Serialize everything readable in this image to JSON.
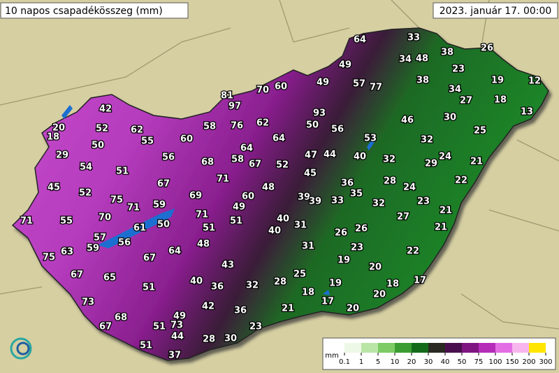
{
  "header": {
    "title": "10 napos csapadékösszeg (mm)",
    "date": "2023. január 17. 00:00"
  },
  "stations": [
    64,
    33,
    38,
    26,
    34,
    48,
    49,
    23,
    38,
    19,
    12,
    57,
    77,
    34,
    27,
    18,
    13,
    81,
    70,
    60,
    49,
    97,
    93,
    46,
    30,
    42,
    20,
    18,
    52,
    62,
    58,
    76,
    62,
    50,
    56,
    53,
    25,
    55,
    60,
    64,
    64,
    32,
    50,
    29,
    56,
    58,
    67,
    47,
    44,
    40,
    32,
    24,
    29,
    21,
    54,
    51,
    68,
    52,
    45,
    71,
    28,
    22,
    45,
    52,
    67,
    69,
    48,
    36,
    24,
    35,
    39,
    39,
    33,
    32,
    23,
    75,
    71,
    59,
    60,
    49,
    71,
    27,
    21,
    71,
    55,
    70,
    51,
    40,
    31,
    50,
    61,
    51,
    40,
    26,
    26,
    21,
    57,
    59,
    56,
    48,
    31,
    23,
    63,
    64,
    22,
    75,
    67,
    19,
    43,
    20,
    67,
    65,
    25,
    17,
    40,
    51,
    36,
    32,
    28,
    18,
    19,
    18,
    20,
    73,
    42,
    17,
    36,
    21,
    20,
    68,
    49,
    51,
    73,
    67,
    23,
    44,
    28,
    30,
    51,
    37
  ],
  "legend": {
    "unit": "mm",
    "ticks": [
      0.1,
      1,
      5,
      10,
      20,
      30,
      40,
      50,
      75,
      100,
      150,
      200,
      300
    ],
    "colors": [
      "#eef8e6",
      "#b9e6a6",
      "#7ccb64",
      "#3a9d32",
      "#136b1a",
      "#2a2a22",
      "#4a0f4e",
      "#7e1682",
      "#b52cb8",
      "#e36ee4",
      "#f7b6ee",
      "#ffe600"
    ]
  }
}
